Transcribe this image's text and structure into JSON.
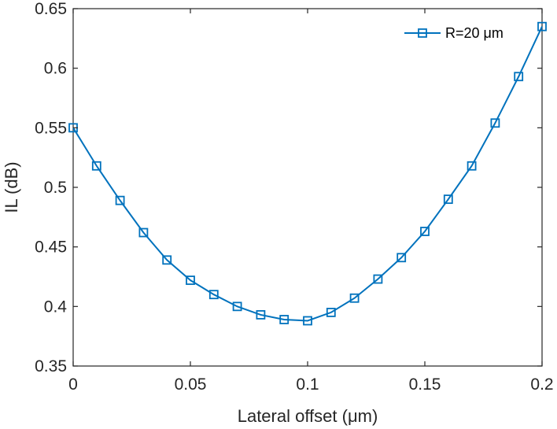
{
  "chart_data": {
    "type": "line",
    "title": "",
    "xlabel": "Lateral offset (μm)",
    "ylabel": "IL (dB)",
    "xlim": [
      0,
      0.2
    ],
    "ylim": [
      0.35,
      0.65
    ],
    "xticks": [
      0,
      0.05,
      0.1,
      0.15,
      0.2
    ],
    "xtick_labels": [
      "0",
      "0.05",
      "0.1",
      "0.15",
      "0.2"
    ],
    "yticks": [
      0.35,
      0.4,
      0.45,
      0.5,
      0.55,
      0.6,
      0.65
    ],
    "ytick_labels": [
      "0.35",
      "0.4",
      "0.45",
      "0.5",
      "0.55",
      "0.6",
      "0.65"
    ],
    "grid": false,
    "legend_position": "top-right",
    "series": [
      {
        "name": "R=20 μm",
        "color": "#0072bd",
        "marker": "square",
        "x": [
          0,
          0.01,
          0.02,
          0.03,
          0.04,
          0.05,
          0.06,
          0.07,
          0.08,
          0.09,
          0.1,
          0.11,
          0.12,
          0.13,
          0.14,
          0.15,
          0.16,
          0.17,
          0.18,
          0.19,
          0.2
        ],
        "y": [
          0.55,
          0.518,
          0.489,
          0.462,
          0.439,
          0.422,
          0.41,
          0.4,
          0.393,
          0.389,
          0.388,
          0.395,
          0.407,
          0.423,
          0.441,
          0.463,
          0.49,
          0.518,
          0.554,
          0.593,
          0.635
        ]
      }
    ]
  }
}
